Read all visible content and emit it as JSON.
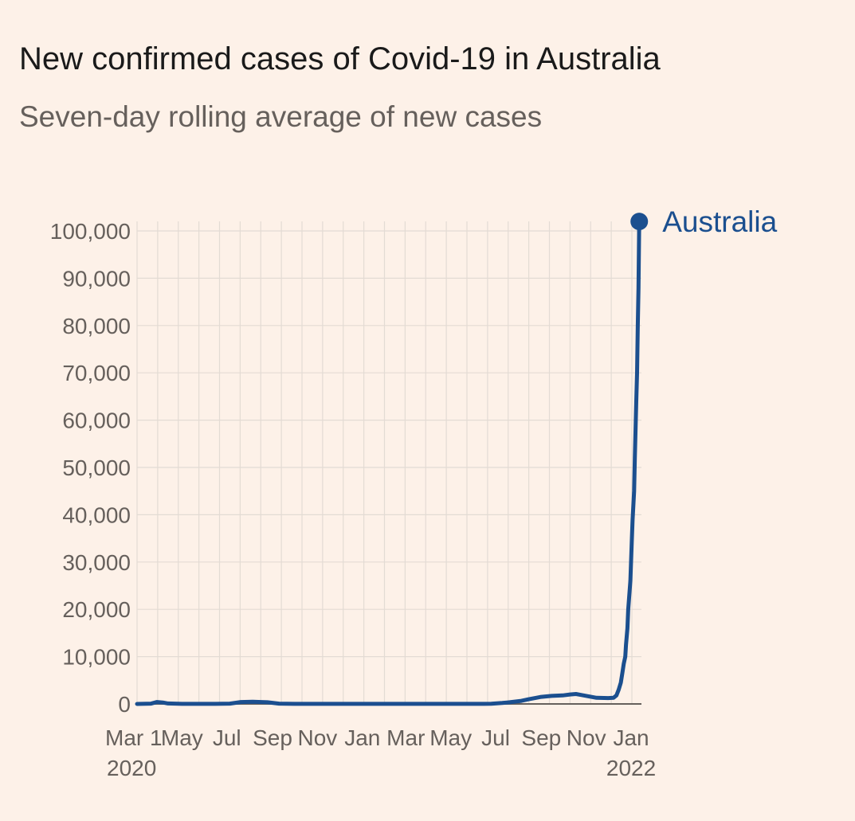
{
  "colors": {
    "background": "#fdf1e8",
    "grid": "#e3dbd4",
    "axis": "#66605c",
    "series": "#1b4f8f"
  },
  "chart_data": {
    "type": "line",
    "title": "New confirmed cases of Covid-19 in Australia",
    "subtitle": "Seven-day rolling average of new cases",
    "xlabel": "",
    "ylabel": "",
    "ylim": [
      0,
      100000
    ],
    "xlim": [
      "2020-03-01",
      "2022-01-15"
    ],
    "grid": true,
    "y_ticks": [
      0,
      10000,
      20000,
      30000,
      40000,
      50000,
      60000,
      70000,
      80000,
      90000,
      100000
    ],
    "y_tick_labels": [
      "0",
      "10,000",
      "20,000",
      "30,000",
      "40,000",
      "50,000",
      "60,000",
      "70,000",
      "80,000",
      "90,000",
      "100,000"
    ],
    "x_ticks": [
      {
        "date": "2020-03-01",
        "label": "Mar 1",
        "sublabel": "2020"
      },
      {
        "date": "2020-05-01",
        "label": "May",
        "sublabel": ""
      },
      {
        "date": "2020-07-01",
        "label": "Jul",
        "sublabel": ""
      },
      {
        "date": "2020-09-01",
        "label": "Sep",
        "sublabel": ""
      },
      {
        "date": "2020-11-01",
        "label": "Nov",
        "sublabel": ""
      },
      {
        "date": "2021-01-01",
        "label": "Jan",
        "sublabel": ""
      },
      {
        "date": "2021-03-01",
        "label": "Mar",
        "sublabel": ""
      },
      {
        "date": "2021-05-01",
        "label": "May",
        "sublabel": ""
      },
      {
        "date": "2021-07-01",
        "label": "Jul",
        "sublabel": ""
      },
      {
        "date": "2021-09-01",
        "label": "Sep",
        "sublabel": ""
      },
      {
        "date": "2021-11-01",
        "label": "Nov",
        "sublabel": ""
      },
      {
        "date": "2022-01-01",
        "label": "Jan",
        "sublabel": "2022"
      }
    ],
    "series": [
      {
        "name": "Australia",
        "x": [
          "2020-03-01",
          "2020-03-20",
          "2020-03-28",
          "2020-04-05",
          "2020-04-12",
          "2020-05-01",
          "2020-06-15",
          "2020-07-05",
          "2020-07-20",
          "2020-08-05",
          "2020-08-25",
          "2020-09-10",
          "2020-10-01",
          "2021-01-01",
          "2021-04-01",
          "2021-06-15",
          "2021-06-25",
          "2021-07-10",
          "2021-07-20",
          "2021-08-05",
          "2021-08-15",
          "2021-08-25",
          "2021-09-01",
          "2021-09-15",
          "2021-09-30",
          "2021-10-10",
          "2021-10-18",
          "2021-10-25",
          "2021-11-15",
          "2021-12-01",
          "2021-12-08",
          "2021-12-12",
          "2021-12-15",
          "2021-12-18",
          "2021-12-20",
          "2021-12-22",
          "2021-12-24",
          "2021-12-25",
          "2021-12-27",
          "2021-12-28",
          "2021-12-30",
          "2021-12-31",
          "2022-01-02",
          "2022-01-03",
          "2022-01-05",
          "2022-01-06",
          "2022-01-07",
          "2022-01-08",
          "2022-01-09",
          "2022-01-10",
          "2022-01-11",
          "2022-01-12"
        ],
        "values": [
          0,
          60,
          400,
          300,
          100,
          20,
          10,
          60,
          400,
          450,
          350,
          60,
          10,
          10,
          10,
          10,
          50,
          200,
          350,
          650,
          1000,
          1300,
          1500,
          1700,
          1800,
          2000,
          2100,
          1900,
          1300,
          1250,
          1300,
          1800,
          3000,
          4500,
          6500,
          8500,
          10000,
          12500,
          16000,
          20000,
          24000,
          26000,
          35000,
          39000,
          45000,
          52000,
          58000,
          64000,
          70000,
          80000,
          88000,
          102000
        ]
      }
    ]
  }
}
